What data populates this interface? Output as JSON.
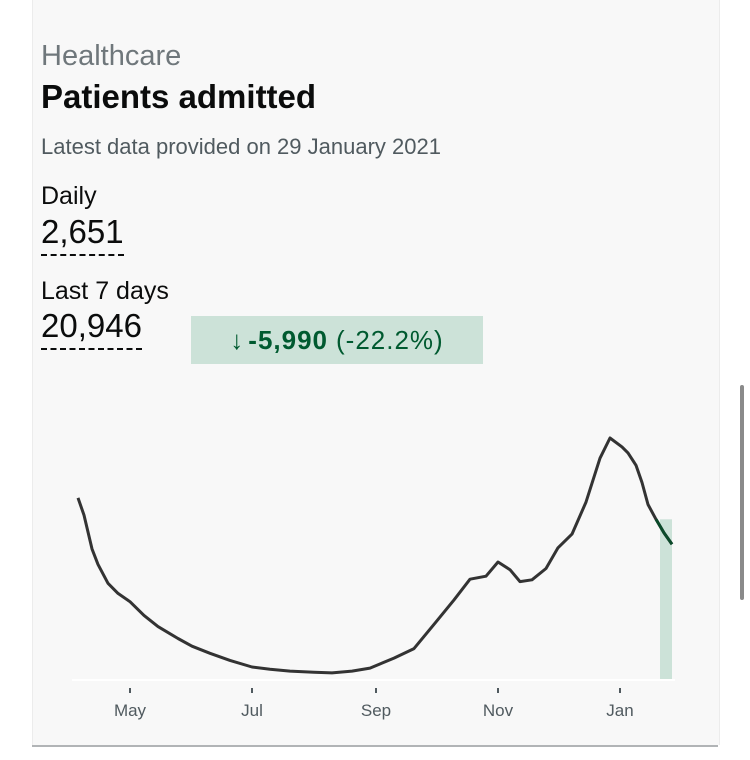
{
  "card": {
    "caption": "Healthcare",
    "title": "Patients admitted",
    "updated": "Latest data provided on 29 January 2021"
  },
  "metrics": {
    "daily": {
      "label": "Daily",
      "value": "2,651"
    },
    "last7": {
      "label": "Last 7 days",
      "value": "20,946"
    },
    "change": {
      "direction": "down",
      "value": "-5,990",
      "percent": "(-22.2%)"
    }
  },
  "colors": {
    "line": "#333333",
    "recent_line": "#0b4a2a",
    "highlight": "#cce2d8",
    "change_text": "#005a30"
  },
  "chart_data": {
    "type": "line",
    "title": "",
    "xlabel": "",
    "ylabel": "",
    "x_tick_labels": [
      "May",
      "Jul",
      "Sep",
      "Nov",
      "Jan"
    ],
    "x_tick_dates": [
      "2020-05-01",
      "2020-07-01",
      "2020-09-01",
      "2020-11-01",
      "2021-01-01"
    ],
    "x_range": [
      "2020-04-05",
      "2021-01-27"
    ],
    "ylim": [
      0,
      4300
    ],
    "grid": false,
    "highlighted_period": [
      "2021-01-21",
      "2021-01-27"
    ],
    "series": [
      {
        "name": "",
        "x": [
          "2020-04-05",
          "2020-04-08",
          "2020-04-12",
          "2020-04-15",
          "2020-04-20",
          "2020-04-25",
          "2020-05-01",
          "2020-05-08",
          "2020-05-15",
          "2020-05-25",
          "2020-06-01",
          "2020-06-10",
          "2020-06-20",
          "2020-07-01",
          "2020-07-10",
          "2020-07-20",
          "2020-08-01",
          "2020-08-10",
          "2020-08-20",
          "2020-08-29",
          "2020-09-10",
          "2020-09-20",
          "2020-10-01",
          "2020-10-10",
          "2020-10-18",
          "2020-10-26",
          "2020-11-01",
          "2020-11-07",
          "2020-11-12",
          "2020-11-18",
          "2020-11-25",
          "2020-12-01",
          "2020-12-08",
          "2020-12-15",
          "2020-12-22",
          "2020-12-27",
          "2021-01-02",
          "2021-01-05",
          "2021-01-09",
          "2021-01-12",
          "2021-01-15",
          "2021-01-19",
          "2021-01-23",
          "2021-01-27"
        ],
        "values": [
          3070,
          2780,
          2210,
          1950,
          1630,
          1460,
          1320,
          1090,
          900,
          700,
          570,
          450,
          330,
          220,
          180,
          150,
          130,
          120,
          150,
          200,
          370,
          530,
          980,
          1350,
          1700,
          1750,
          1990,
          1860,
          1660,
          1690,
          1880,
          2230,
          2460,
          3000,
          3740,
          4080,
          3930,
          3830,
          3620,
          3330,
          2960,
          2710,
          2480,
          2290
        ]
      }
    ]
  }
}
